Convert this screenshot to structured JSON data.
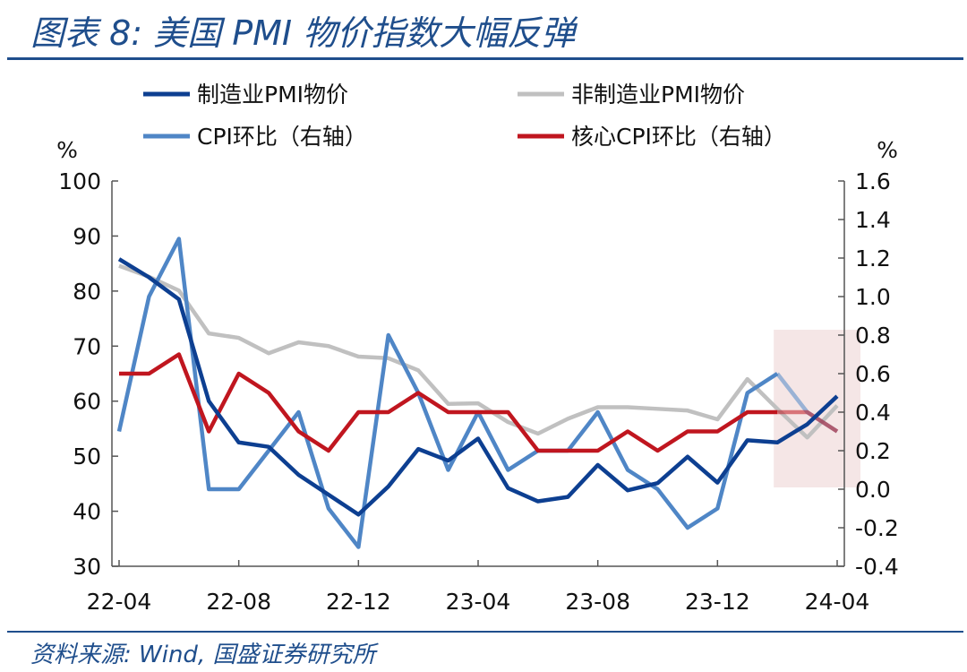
{
  "header": {
    "title": "图表 8:  美国 PMI 物价指数大幅反弹"
  },
  "footer": {
    "source": "资料来源:  Wind,  国盛证券研究所"
  },
  "chart_data": {
    "type": "line",
    "x": [
      "22-04",
      "22-05",
      "22-06",
      "22-07",
      "22-08",
      "22-09",
      "22-10",
      "22-11",
      "22-12",
      "23-01",
      "23-02",
      "23-03",
      "23-04",
      "23-05",
      "23-06",
      "23-07",
      "23-08",
      "23-09",
      "23-10",
      "23-11",
      "23-12",
      "24-01",
      "24-02",
      "24-03",
      "24-04"
    ],
    "x_tick_labels": [
      "22-04",
      "22-08",
      "22-12",
      "23-04",
      "23-08",
      "23-12",
      "24-04"
    ],
    "y_left": {
      "unit": "%",
      "lim": [
        30,
        100
      ],
      "ticks": [
        30,
        40,
        50,
        60,
        70,
        80,
        90,
        100
      ]
    },
    "y_right": {
      "unit": "%",
      "lim": [
        -0.4,
        1.6
      ],
      "ticks": [
        -0.4,
        -0.2,
        0.0,
        0.2,
        0.4,
        0.6,
        0.8,
        1.0,
        1.2,
        1.4,
        1.6
      ],
      "tick_labels": [
        "-0.4",
        "-0.2",
        "0.0",
        "0.2",
        "0.4",
        "0.6",
        "0.8",
        "1.0",
        "1.2",
        "1.4",
        "1.6"
      ]
    },
    "legend_placement": "top",
    "highlight": {
      "x_range": [
        "24-02",
        "24-04"
      ],
      "color": "#f2dede"
    },
    "series": [
      {
        "name": "制造业PMI物价",
        "axis": "left",
        "color": "#0d3f91",
        "values": [
          85.8,
          82.5,
          78.5,
          60.0,
          52.5,
          51.7,
          46.6,
          43.0,
          39.4,
          44.5,
          51.3,
          49.2,
          53.2,
          44.2,
          41.8,
          42.6,
          48.4,
          43.8,
          45.1,
          49.9,
          45.2,
          52.9,
          52.5,
          55.8,
          60.9
        ]
      },
      {
        "name": "非制造业PMI物价",
        "axis": "left",
        "color": "#c0c0c0",
        "values": [
          84.6,
          82.6,
          80.1,
          72.3,
          71.5,
          68.7,
          70.7,
          70.0,
          68.1,
          67.8,
          65.6,
          59.5,
          59.6,
          56.2,
          54.1,
          56.8,
          58.9,
          58.9,
          58.6,
          58.3,
          56.7,
          64.0,
          58.6,
          53.4,
          59.2
        ]
      },
      {
        "name": "CPI环比(右轴)",
        "axis": "right",
        "color": "#4f86c6",
        "values": [
          0.3,
          1.0,
          1.3,
          0.0,
          0.0,
          0.2,
          0.4,
          -0.1,
          -0.3,
          0.8,
          0.5,
          0.1,
          0.4,
          0.1,
          0.2,
          0.2,
          0.4,
          0.1,
          -0.0,
          -0.2,
          -0.1,
          0.5,
          0.6,
          0.4,
          0.3
        ],
        "tail_faded_from": "24-02"
      },
      {
        "name": "核心CPI环比(右轴)",
        "axis": "right",
        "color": "#c0161f",
        "values": [
          0.6,
          0.6,
          0.7,
          0.3,
          0.6,
          0.5,
          0.3,
          0.2,
          0.4,
          0.4,
          0.5,
          0.4,
          0.4,
          0.4,
          0.2,
          0.2,
          0.2,
          0.3,
          0.2,
          0.3,
          0.3,
          0.4,
          0.4,
          0.4,
          0.3
        ],
        "tail_faded_from": "24-02"
      }
    ],
    "legend_labels": [
      "制造业PMI物价",
      "非制造业PMI物价",
      "CPI环比（右轴）",
      "核心CPI环比（右轴）"
    ]
  }
}
